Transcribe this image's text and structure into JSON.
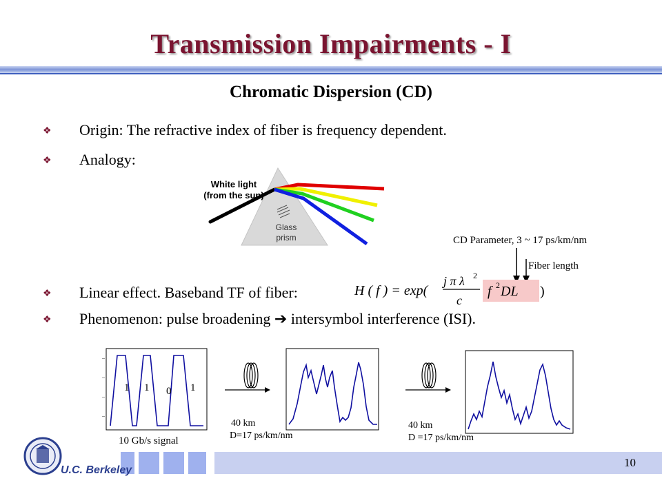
{
  "slide": {
    "title": "Transmission Impairments - I",
    "subtitle": "Chromatic Dispersion (CD)",
    "page_number": "10"
  },
  "bullets": [
    {
      "marker": "❖",
      "text": "Origin: The refractive index of fiber is frequency dependent."
    },
    {
      "marker": "❖",
      "text": "Analogy:"
    },
    {
      "marker": "❖",
      "text": "Linear effect. Baseband TF of fiber:"
    },
    {
      "marker": "❖",
      "text": "Phenomenon: pulse broadening ➔ intersymbol interference (ISI)."
    }
  ],
  "prism": {
    "label_line1": "White light",
    "label_line2": "(from the sun)",
    "glass_line1": "Glass",
    "glass_line2": "prism",
    "ray_colors": [
      "#e00000",
      "#f0f000",
      "#20d020",
      "#1020e0"
    ]
  },
  "formula": {
    "lhs": "H ( f ) = exp(",
    "jpi": "j π λ",
    "sq": "2",
    "c": "c",
    "term": "f",
    "term_sq": "2",
    "dl": " DL",
    "close": ")",
    "highlight_color": "#f7c9c9"
  },
  "annotations": {
    "cd_parameter": "CD Parameter, 3 ~ 17 ps/km/nm",
    "fiber_length": "Fiber length"
  },
  "signals": {
    "bits": [
      "1",
      "1",
      "0",
      "1"
    ],
    "input_label": "10 Gb/s signal",
    "stage1_label_1": "40 km",
    "stage1_label_2": "D=17 ps/km/nm",
    "stage2_label_1": "40 km",
    "stage2_label_2": "D =17 ps/km/nm"
  },
  "footer": {
    "logo_text": "U.C. Berkeley"
  }
}
